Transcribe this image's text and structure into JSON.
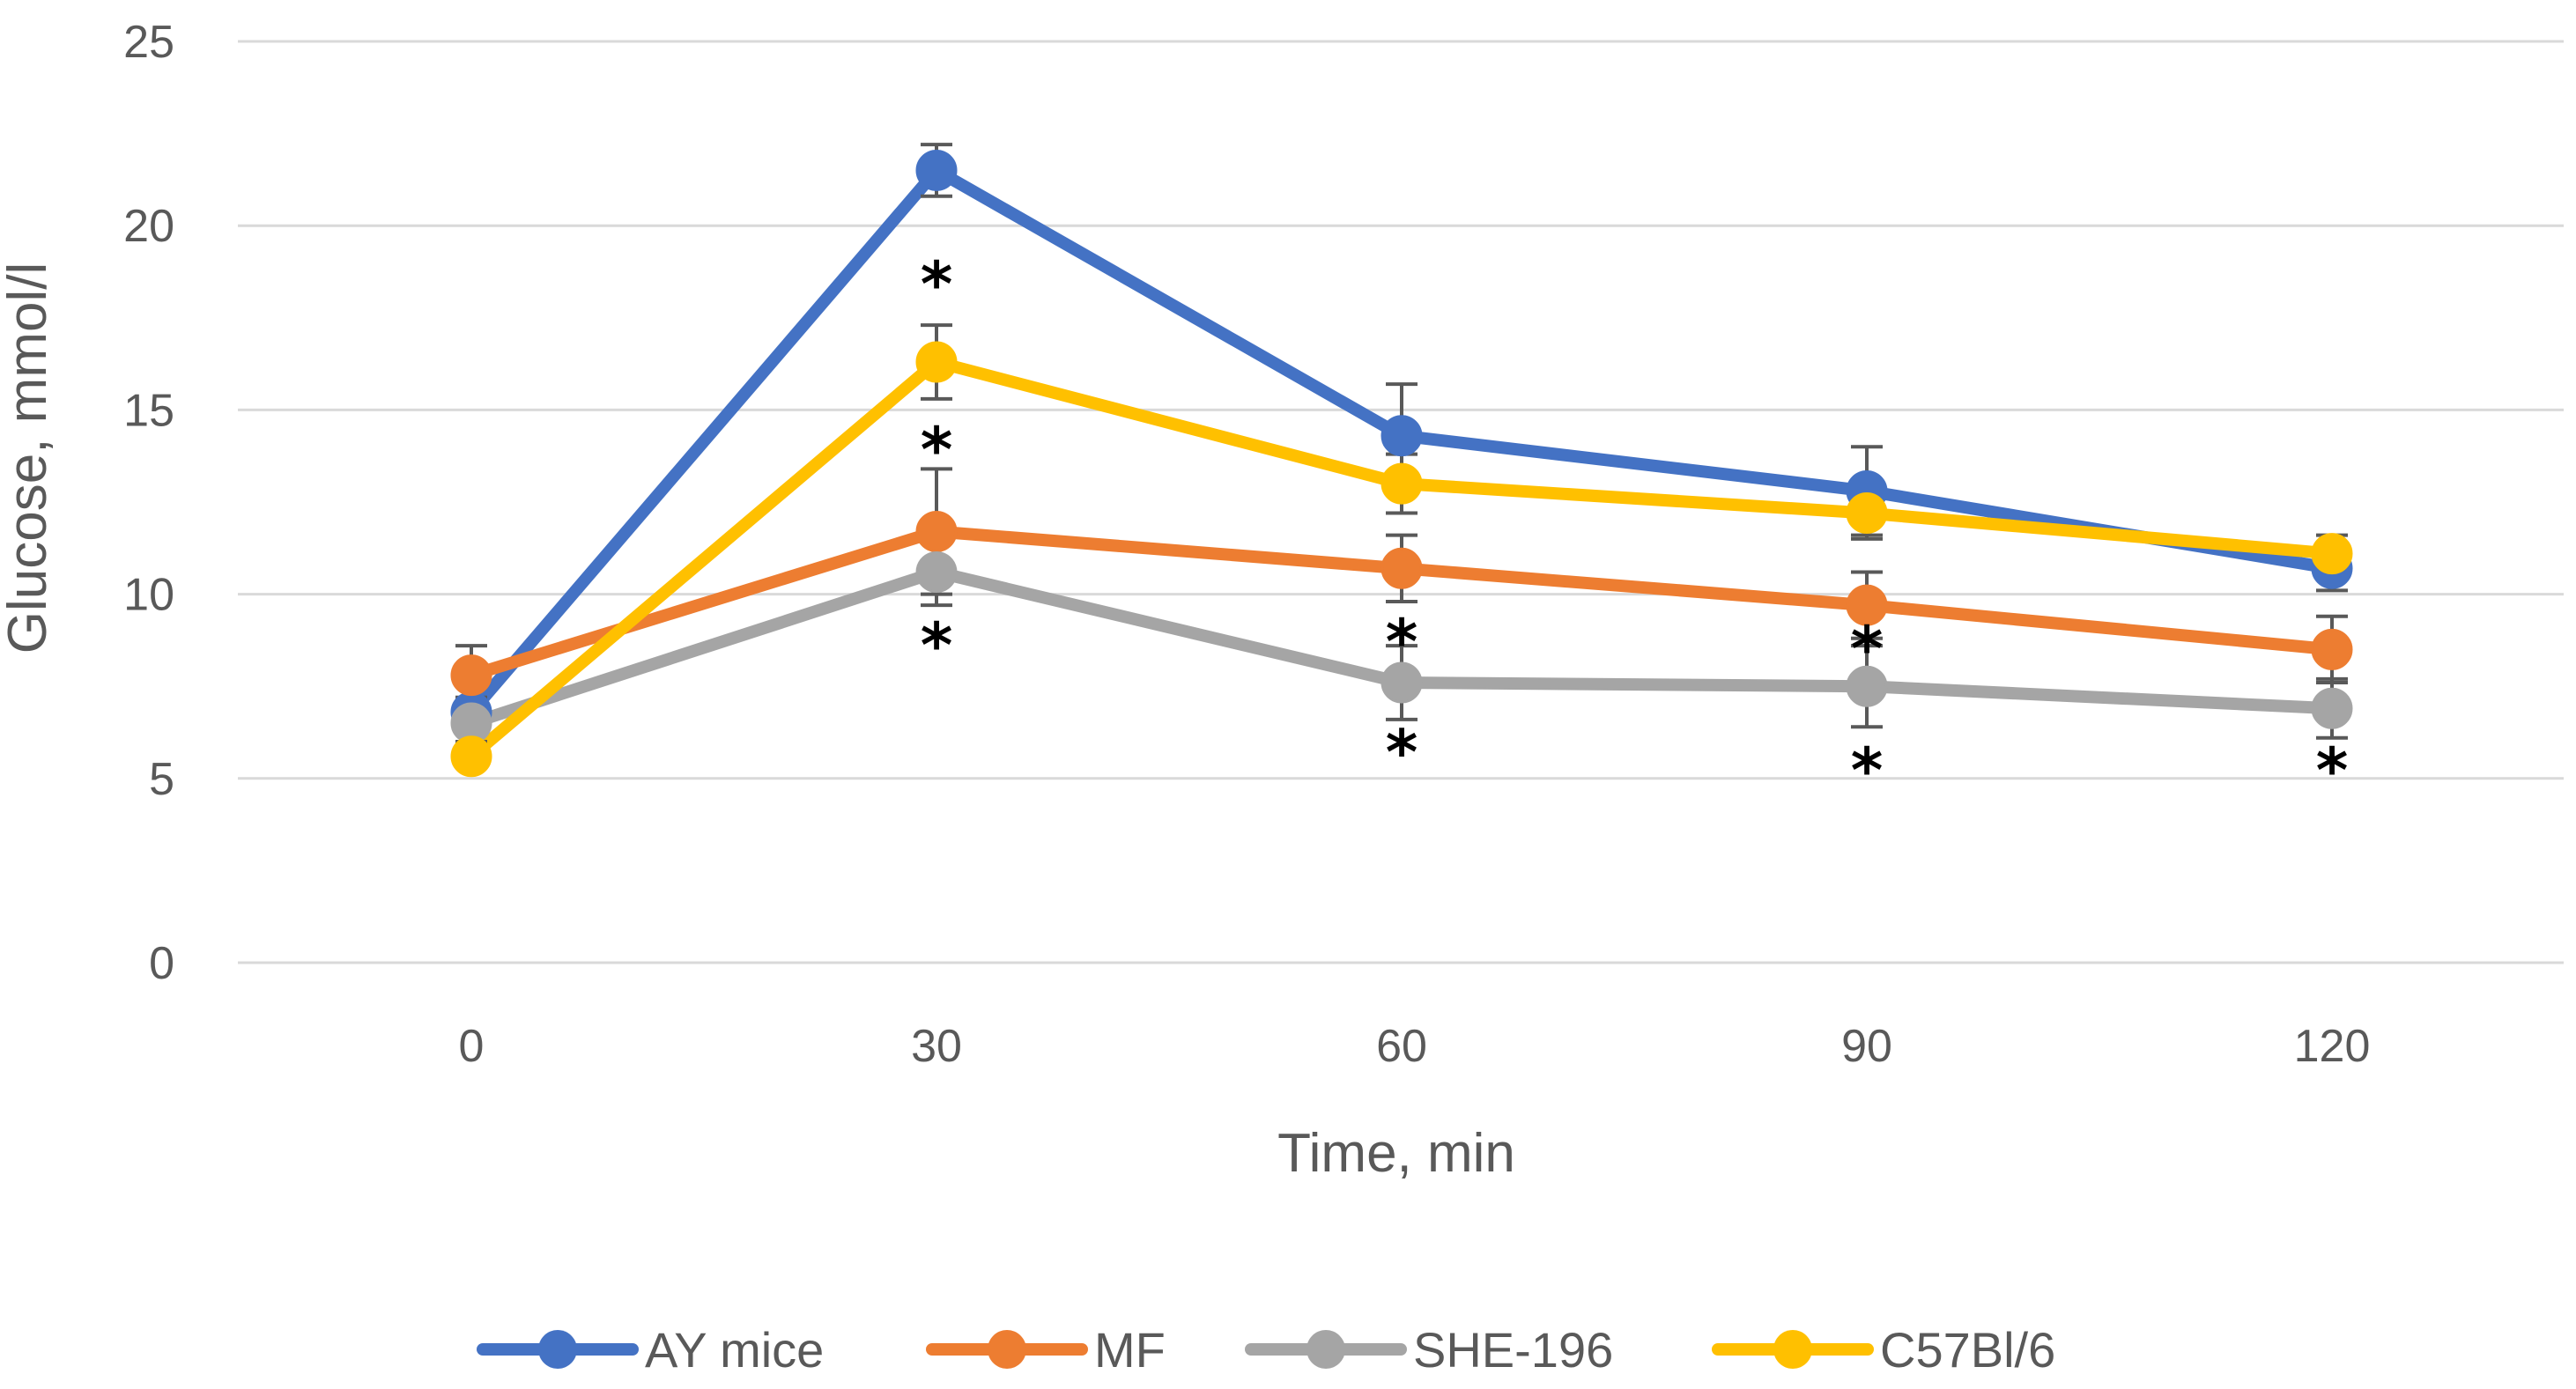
{
  "chart_data": {
    "type": "line",
    "title": "",
    "xlabel": "Time, min",
    "ylabel": "Glucose, mmol/l",
    "categories": [
      "0",
      "30",
      "60",
      "90",
      "120"
    ],
    "ylim": [
      0,
      25
    ],
    "yticks": [
      0,
      5,
      10,
      15,
      20,
      25
    ],
    "grid": true,
    "legend_position": "bottom",
    "series": [
      {
        "name": "AY mice",
        "color": "#4472C4",
        "values": [
          6.8,
          21.5,
          14.3,
          12.8,
          10.7
        ],
        "errors": [
          0.8,
          0.7,
          1.4,
          1.2,
          0.6
        ]
      },
      {
        "name": "MF",
        "color": "#ED7D31",
        "values": [
          7.8,
          11.7,
          10.7,
          9.7,
          8.5
        ],
        "errors": [
          0.8,
          1.7,
          0.9,
          0.9,
          0.9
        ]
      },
      {
        "name": "SHE-196",
        "color": "#A5A5A5",
        "values": [
          6.5,
          10.6,
          7.6,
          7.5,
          6.9
        ],
        "errors": [
          0.7,
          0.9,
          1.0,
          1.1,
          0.8
        ]
      },
      {
        "name": "C57Bl/6",
        "color": "#FFC000",
        "values": [
          5.6,
          16.3,
          13.0,
          12.2,
          11.1
        ],
        "errors": [
          0.3,
          1.0,
          0.8,
          0.7,
          0.5
        ]
      }
    ],
    "annotations": [
      {
        "text": "*",
        "x": "30",
        "y": 18.5
      },
      {
        "text": "*",
        "x": "30",
        "y": 14.0
      },
      {
        "text": "*",
        "x": "30",
        "y": 8.7
      },
      {
        "text": "*",
        "x": "60",
        "y": 8.8
      },
      {
        "text": "*",
        "x": "60",
        "y": 5.8
      },
      {
        "text": "*",
        "x": "90",
        "y": 8.6
      },
      {
        "text": "*",
        "x": "90",
        "y": 5.3
      },
      {
        "text": "*",
        "x": "120",
        "y": 5.3
      }
    ]
  }
}
